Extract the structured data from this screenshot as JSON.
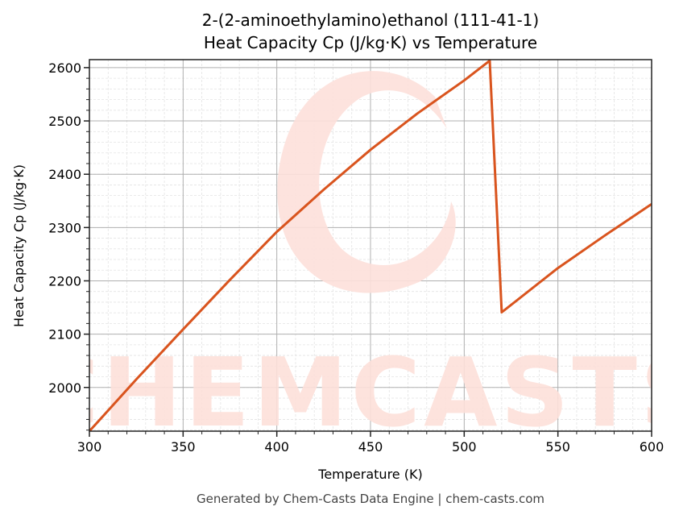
{
  "title": {
    "line1": "2-(2-aminoethylamino)ethanol (111-41-1)",
    "line2": "Heat Capacity Cp (J/kg·K) vs Temperature"
  },
  "axes": {
    "xlabel": "Temperature (K)",
    "ylabel": "Heat Capacity Cp (J/kg·K)",
    "xticks": [
      "300",
      "350",
      "400",
      "450",
      "500",
      "550",
      "600"
    ],
    "yticks": [
      "2000",
      "2100",
      "2200",
      "2300",
      "2400",
      "2500",
      "2600"
    ]
  },
  "footer": "Generated by Chem-Casts Data Engine | chem-casts.com",
  "watermark": "CHEMCASTS",
  "colors": {
    "line": "#d9541e",
    "watermark": "#fde0da"
  },
  "chart_data": {
    "type": "line",
    "title": "2-(2-aminoethylamino)ethanol (111-41-1) Heat Capacity Cp (J/kg·K) vs Temperature",
    "xlabel": "Temperature (K)",
    "ylabel": "Heat Capacity Cp (J/kg·K)",
    "xlim": [
      300,
      600
    ],
    "ylim": [
      1918,
      2615
    ],
    "grid": true,
    "minor_grid": true,
    "legend": null,
    "series": [
      {
        "name": "Cp",
        "x": [
          300,
          325,
          350,
          375,
          400,
          425,
          450,
          475,
          500,
          513.6,
          520,
          550,
          575,
          600
        ],
        "y": [
          1918,
          2015,
          2109,
          2202,
          2292,
          2371,
          2446,
          2514,
          2576,
          2613,
          2141,
          2224,
          2285,
          2344
        ]
      }
    ]
  }
}
